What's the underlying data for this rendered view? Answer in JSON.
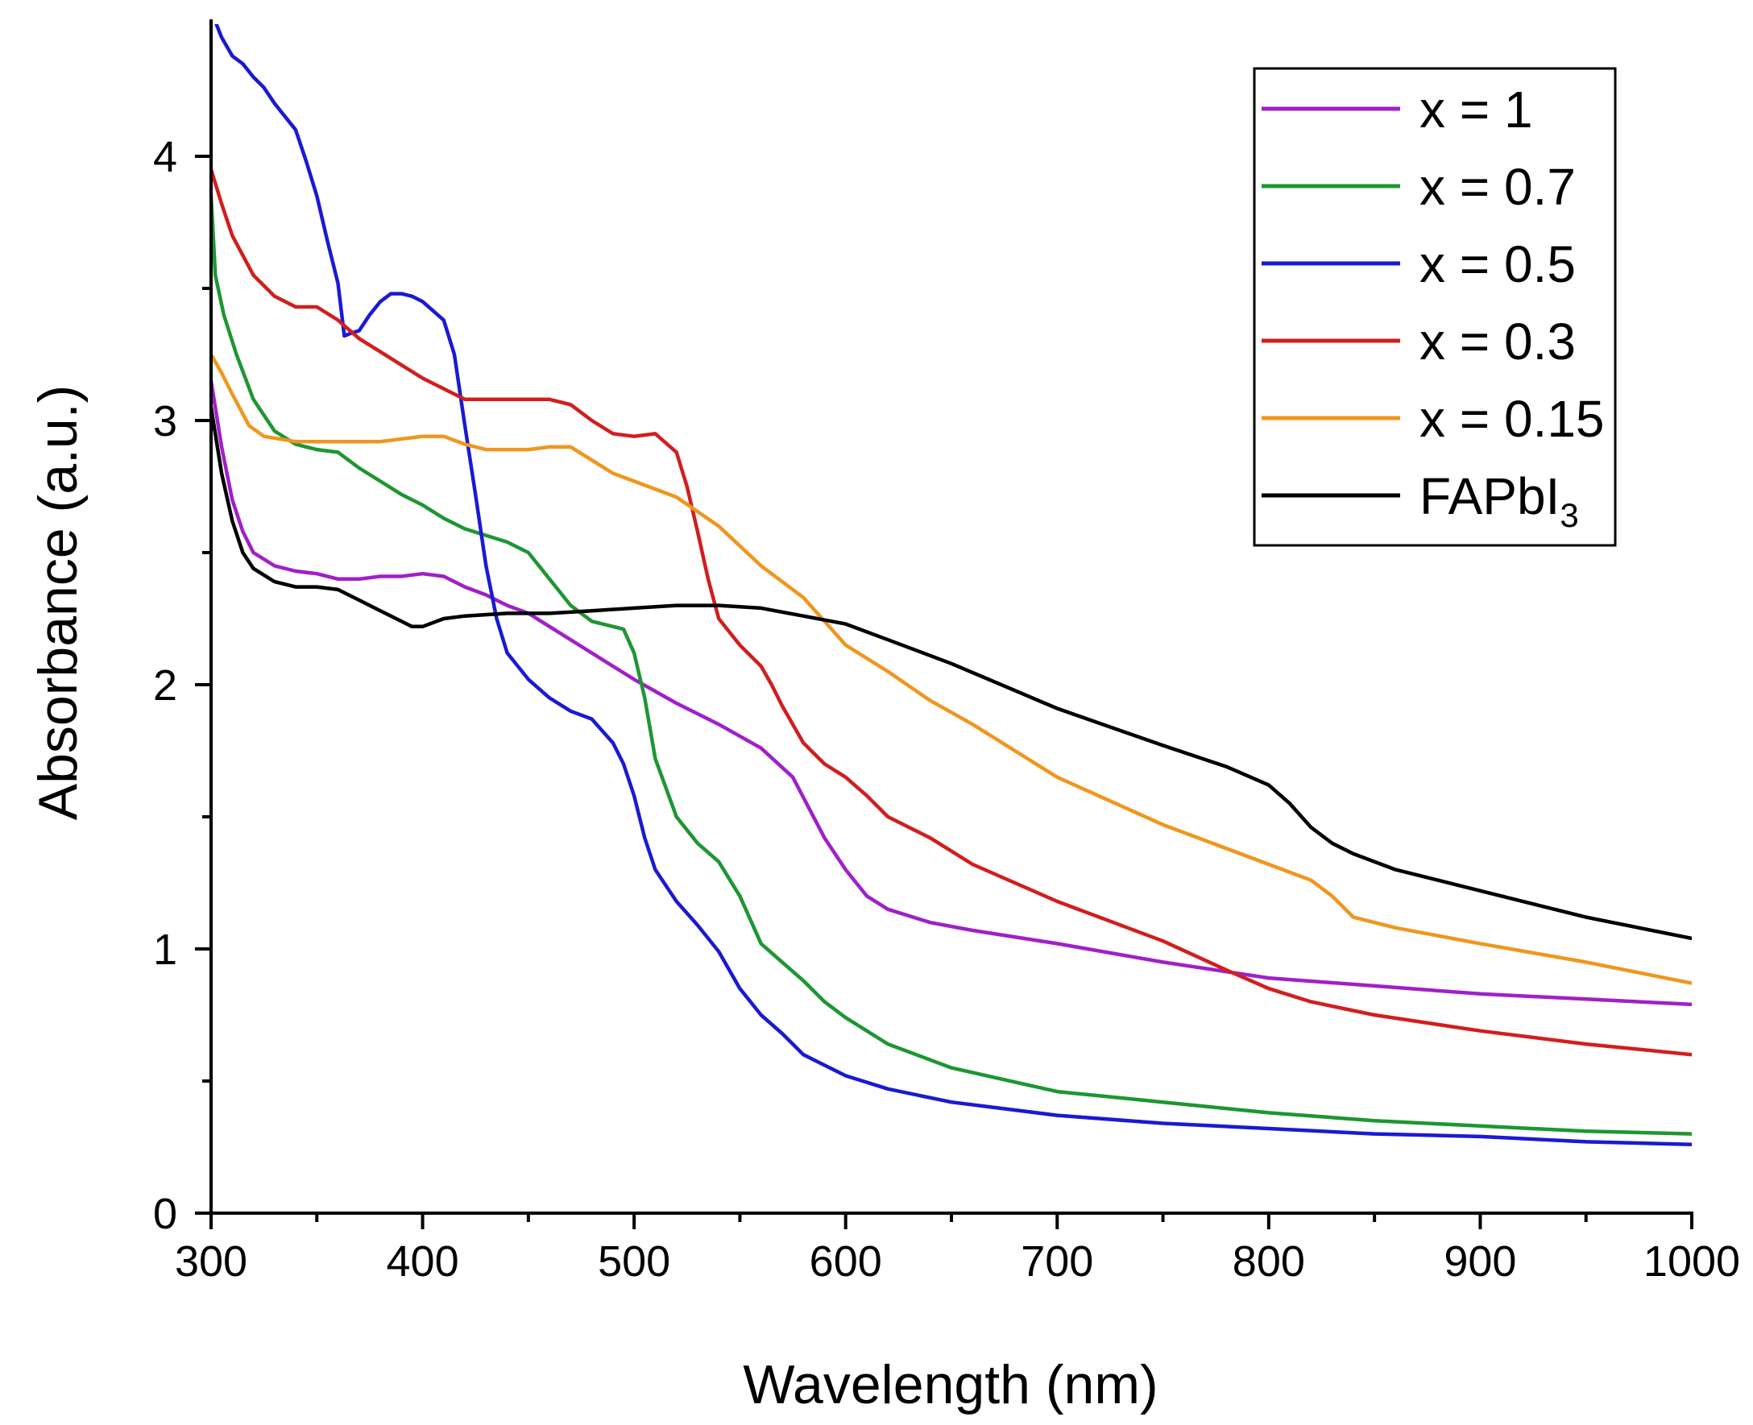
{
  "chart_data": {
    "type": "line",
    "title": "",
    "xlabel": "Wavelength (nm)",
    "ylabel": "Absorbance (a.u.)",
    "xlim": [
      300,
      1000
    ],
    "ylim": [
      0,
      4.5
    ],
    "xticks": [
      300,
      400,
      500,
      600,
      700,
      800,
      900,
      1000
    ],
    "yticks": [
      0,
      1,
      2,
      3,
      4
    ],
    "grid": false,
    "legend_position": "top-right",
    "series": [
      {
        "name": "x = 1",
        "label_main": "x = 1",
        "label_sub": "",
        "color": "#a020c8",
        "points": [
          [
            300,
            3.15
          ],
          [
            305,
            2.9
          ],
          [
            310,
            2.7
          ],
          [
            315,
            2.58
          ],
          [
            320,
            2.5
          ],
          [
            330,
            2.45
          ],
          [
            340,
            2.43
          ],
          [
            350,
            2.42
          ],
          [
            360,
            2.4
          ],
          [
            370,
            2.4
          ],
          [
            380,
            2.41
          ],
          [
            390,
            2.41
          ],
          [
            400,
            2.42
          ],
          [
            410,
            2.41
          ],
          [
            420,
            2.37
          ],
          [
            430,
            2.34
          ],
          [
            440,
            2.3
          ],
          [
            450,
            2.27
          ],
          [
            460,
            2.22
          ],
          [
            480,
            2.12
          ],
          [
            500,
            2.02
          ],
          [
            520,
            1.93
          ],
          [
            540,
            1.85
          ],
          [
            560,
            1.76
          ],
          [
            575,
            1.65
          ],
          [
            590,
            1.42
          ],
          [
            600,
            1.3
          ],
          [
            610,
            1.2
          ],
          [
            620,
            1.15
          ],
          [
            640,
            1.1
          ],
          [
            660,
            1.07
          ],
          [
            700,
            1.02
          ],
          [
            750,
            0.95
          ],
          [
            800,
            0.89
          ],
          [
            850,
            0.86
          ],
          [
            900,
            0.83
          ],
          [
            950,
            0.81
          ],
          [
            1000,
            0.79
          ]
        ]
      },
      {
        "name": "x = 0.7",
        "label_main": "x = 0.7",
        "label_sub": "",
        "color": "#1e9632",
        "points": [
          [
            300,
            3.85
          ],
          [
            302,
            3.55
          ],
          [
            306,
            3.4
          ],
          [
            312,
            3.25
          ],
          [
            320,
            3.08
          ],
          [
            330,
            2.96
          ],
          [
            340,
            2.91
          ],
          [
            350,
            2.89
          ],
          [
            360,
            2.88
          ],
          [
            370,
            2.82
          ],
          [
            380,
            2.77
          ],
          [
            390,
            2.72
          ],
          [
            400,
            2.68
          ],
          [
            410,
            2.63
          ],
          [
            420,
            2.59
          ],
          [
            440,
            2.54
          ],
          [
            450,
            2.5
          ],
          [
            460,
            2.4
          ],
          [
            470,
            2.3
          ],
          [
            480,
            2.24
          ],
          [
            490,
            2.22
          ],
          [
            495,
            2.21
          ],
          [
            500,
            2.12
          ],
          [
            505,
            1.95
          ],
          [
            510,
            1.72
          ],
          [
            520,
            1.5
          ],
          [
            530,
            1.4
          ],
          [
            540,
            1.33
          ],
          [
            550,
            1.2
          ],
          [
            560,
            1.02
          ],
          [
            570,
            0.95
          ],
          [
            580,
            0.88
          ],
          [
            590,
            0.8
          ],
          [
            600,
            0.74
          ],
          [
            620,
            0.64
          ],
          [
            650,
            0.55
          ],
          [
            700,
            0.46
          ],
          [
            750,
            0.42
          ],
          [
            800,
            0.38
          ],
          [
            850,
            0.35
          ],
          [
            900,
            0.33
          ],
          [
            950,
            0.31
          ],
          [
            1000,
            0.3
          ]
        ]
      },
      {
        "name": "x = 0.5",
        "label_main": "x = 0.5",
        "label_sub": "",
        "color": "#1a1ad2",
        "points": [
          [
            300,
            4.55
          ],
          [
            305,
            4.45
          ],
          [
            310,
            4.38
          ],
          [
            315,
            4.35
          ],
          [
            320,
            4.3
          ],
          [
            325,
            4.26
          ],
          [
            330,
            4.2
          ],
          [
            335,
            4.15
          ],
          [
            340,
            4.1
          ],
          [
            345,
            3.98
          ],
          [
            350,
            3.85
          ],
          [
            355,
            3.68
          ],
          [
            360,
            3.52
          ],
          [
            363,
            3.32
          ],
          [
            366,
            3.33
          ],
          [
            370,
            3.34
          ],
          [
            375,
            3.4
          ],
          [
            380,
            3.45
          ],
          [
            385,
            3.48
          ],
          [
            390,
            3.48
          ],
          [
            395,
            3.47
          ],
          [
            400,
            3.45
          ],
          [
            410,
            3.38
          ],
          [
            415,
            3.25
          ],
          [
            420,
            2.98
          ],
          [
            425,
            2.72
          ],
          [
            430,
            2.45
          ],
          [
            435,
            2.25
          ],
          [
            440,
            2.12
          ],
          [
            450,
            2.02
          ],
          [
            460,
            1.95
          ],
          [
            470,
            1.9
          ],
          [
            480,
            1.87
          ],
          [
            490,
            1.78
          ],
          [
            495,
            1.7
          ],
          [
            500,
            1.58
          ],
          [
            505,
            1.42
          ],
          [
            510,
            1.3
          ],
          [
            520,
            1.18
          ],
          [
            530,
            1.09
          ],
          [
            540,
            0.99
          ],
          [
            550,
            0.85
          ],
          [
            560,
            0.75
          ],
          [
            570,
            0.68
          ],
          [
            580,
            0.6
          ],
          [
            600,
            0.52
          ],
          [
            620,
            0.47
          ],
          [
            650,
            0.42
          ],
          [
            700,
            0.37
          ],
          [
            750,
            0.34
          ],
          [
            800,
            0.32
          ],
          [
            850,
            0.3
          ],
          [
            900,
            0.29
          ],
          [
            950,
            0.27
          ],
          [
            1000,
            0.26
          ]
        ]
      },
      {
        "name": "x = 0.3",
        "label_main": "x = 0.3",
        "label_sub": "",
        "color": "#d21e1e",
        "points": [
          [
            300,
            3.95
          ],
          [
            305,
            3.82
          ],
          [
            310,
            3.7
          ],
          [
            320,
            3.55
          ],
          [
            330,
            3.47
          ],
          [
            340,
            3.43
          ],
          [
            350,
            3.43
          ],
          [
            360,
            3.38
          ],
          [
            370,
            3.31
          ],
          [
            380,
            3.26
          ],
          [
            390,
            3.21
          ],
          [
            400,
            3.16
          ],
          [
            410,
            3.12
          ],
          [
            420,
            3.08
          ],
          [
            440,
            3.08
          ],
          [
            460,
            3.08
          ],
          [
            470,
            3.06
          ],
          [
            480,
            3.0
          ],
          [
            490,
            2.95
          ],
          [
            500,
            2.94
          ],
          [
            510,
            2.95
          ],
          [
            520,
            2.88
          ],
          [
            525,
            2.75
          ],
          [
            530,
            2.58
          ],
          [
            535,
            2.4
          ],
          [
            540,
            2.25
          ],
          [
            550,
            2.15
          ],
          [
            560,
            2.07
          ],
          [
            565,
            2.0
          ],
          [
            570,
            1.92
          ],
          [
            580,
            1.78
          ],
          [
            590,
            1.7
          ],
          [
            600,
            1.65
          ],
          [
            610,
            1.58
          ],
          [
            620,
            1.5
          ],
          [
            640,
            1.42
          ],
          [
            660,
            1.32
          ],
          [
            700,
            1.18
          ],
          [
            750,
            1.03
          ],
          [
            780,
            0.92
          ],
          [
            800,
            0.85
          ],
          [
            820,
            0.8
          ],
          [
            850,
            0.75
          ],
          [
            900,
            0.69
          ],
          [
            950,
            0.64
          ],
          [
            1000,
            0.6
          ]
        ]
      },
      {
        "name": "x = 0.15",
        "label_main": "x = 0.15",
        "label_sub": "",
        "color": "#f0961e",
        "points": [
          [
            300,
            3.25
          ],
          [
            305,
            3.18
          ],
          [
            310,
            3.1
          ],
          [
            318,
            2.98
          ],
          [
            325,
            2.94
          ],
          [
            340,
            2.92
          ],
          [
            360,
            2.92
          ],
          [
            380,
            2.92
          ],
          [
            400,
            2.94
          ],
          [
            410,
            2.94
          ],
          [
            420,
            2.91
          ],
          [
            430,
            2.89
          ],
          [
            440,
            2.89
          ],
          [
            450,
            2.89
          ],
          [
            460,
            2.9
          ],
          [
            470,
            2.9
          ],
          [
            480,
            2.85
          ],
          [
            490,
            2.8
          ],
          [
            500,
            2.77
          ],
          [
            520,
            2.71
          ],
          [
            540,
            2.6
          ],
          [
            560,
            2.45
          ],
          [
            580,
            2.33
          ],
          [
            600,
            2.15
          ],
          [
            620,
            2.05
          ],
          [
            640,
            1.94
          ],
          [
            660,
            1.85
          ],
          [
            700,
            1.65
          ],
          [
            750,
            1.47
          ],
          [
            800,
            1.32
          ],
          [
            820,
            1.26
          ],
          [
            830,
            1.2
          ],
          [
            840,
            1.12
          ],
          [
            860,
            1.08
          ],
          [
            900,
            1.02
          ],
          [
            950,
            0.95
          ],
          [
            1000,
            0.87
          ]
        ]
      },
      {
        "name": "FAPbI3",
        "label_main": "FAPbI",
        "label_sub": "3",
        "color": "#000000",
        "points": [
          [
            300,
            3.05
          ],
          [
            305,
            2.8
          ],
          [
            310,
            2.62
          ],
          [
            315,
            2.5
          ],
          [
            320,
            2.44
          ],
          [
            330,
            2.39
          ],
          [
            340,
            2.37
          ],
          [
            350,
            2.37
          ],
          [
            360,
            2.36
          ],
          [
            370,
            2.32
          ],
          [
            380,
            2.28
          ],
          [
            390,
            2.24
          ],
          [
            395,
            2.22
          ],
          [
            400,
            2.22
          ],
          [
            410,
            2.25
          ],
          [
            420,
            2.26
          ],
          [
            440,
            2.27
          ],
          [
            460,
            2.27
          ],
          [
            480,
            2.28
          ],
          [
            500,
            2.29
          ],
          [
            520,
            2.3
          ],
          [
            540,
            2.3
          ],
          [
            560,
            2.29
          ],
          [
            580,
            2.26
          ],
          [
            600,
            2.23
          ],
          [
            620,
            2.17
          ],
          [
            650,
            2.08
          ],
          [
            700,
            1.91
          ],
          [
            750,
            1.77
          ],
          [
            780,
            1.69
          ],
          [
            800,
            1.62
          ],
          [
            810,
            1.55
          ],
          [
            820,
            1.46
          ],
          [
            830,
            1.4
          ],
          [
            840,
            1.36
          ],
          [
            860,
            1.3
          ],
          [
            900,
            1.22
          ],
          [
            950,
            1.12
          ],
          [
            1000,
            1.04
          ]
        ]
      }
    ]
  }
}
